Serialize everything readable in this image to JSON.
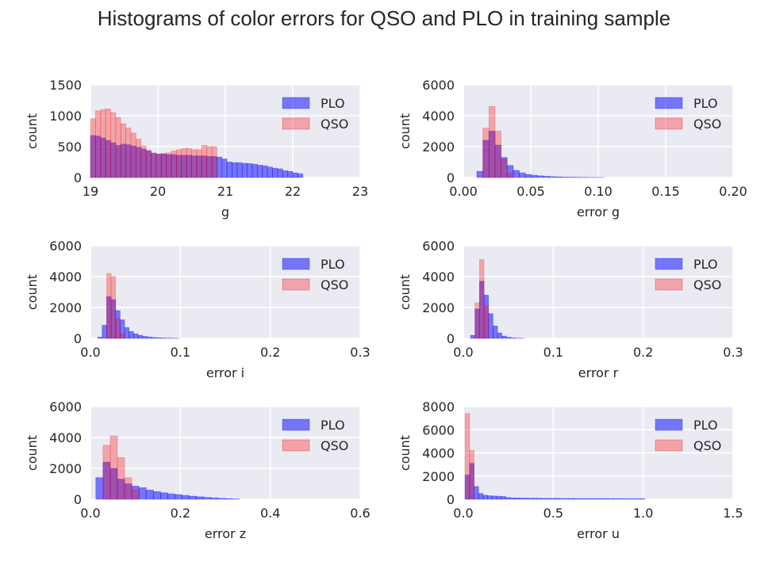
{
  "figure": {
    "title": "Histograms of color errors for QSO and PLO in training sample"
  },
  "colors": {
    "background": "#eaeaf2",
    "grid": "#ffffff",
    "plo": "#0000ff",
    "qso": "#ff0000",
    "text": "#262626"
  },
  "chart_data": [
    {
      "type": "bar",
      "xlabel": "g",
      "ylabel": "count",
      "xlim": [
        19,
        23
      ],
      "ylim": [
        0,
        1500
      ],
      "xticks": [
        "19",
        "20",
        "21",
        "22",
        "23"
      ],
      "yticks": [
        "0",
        "500",
        "1000",
        "1500"
      ],
      "legend": [
        "PLO",
        "QSO"
      ],
      "legend_position": "top-right",
      "bin_start": 19.0,
      "bin_width": 0.075,
      "series": [
        {
          "name": "PLO",
          "values": [
            680,
            670,
            640,
            600,
            560,
            520,
            540,
            530,
            510,
            490,
            460,
            430,
            390,
            380,
            380,
            370,
            370,
            360,
            360,
            360,
            350,
            350,
            350,
            340,
            340,
            330,
            300,
            250,
            240,
            240,
            230,
            225,
            215,
            200,
            190,
            170,
            150,
            140,
            110,
            100,
            75,
            60,
            0,
            0,
            0,
            0,
            0,
            0,
            0,
            0,
            0,
            0,
            0,
            0
          ]
        },
        {
          "name": "QSO",
          "values": [
            950,
            1080,
            1100,
            1110,
            1050,
            970,
            870,
            800,
            720,
            620,
            510,
            440,
            400,
            380,
            390,
            400,
            430,
            450,
            470,
            470,
            450,
            450,
            520,
            500,
            500,
            0,
            0,
            0,
            0,
            0,
            0,
            0,
            0,
            0,
            0,
            0,
            0,
            0,
            0,
            0,
            0,
            0,
            0,
            0,
            0,
            0,
            0,
            0,
            0,
            0,
            0,
            0,
            0,
            0
          ]
        }
      ]
    },
    {
      "type": "bar",
      "xlabel": "error g",
      "ylabel": "count",
      "xlim": [
        0,
        0.2
      ],
      "ylim": [
        0,
        6000
      ],
      "xticks": [
        "0.00",
        "0.05",
        "0.10",
        "0.15",
        "0.20"
      ],
      "yticks": [
        "0",
        "2000",
        "4000",
        "6000"
      ],
      "legend": [
        "PLO",
        "QSO"
      ],
      "legend_position": "top-right",
      "bin_start": 0.01,
      "bin_width": 0.0045,
      "series": [
        {
          "name": "PLO",
          "values": [
            400,
            2400,
            3000,
            2100,
            1300,
            780,
            460,
            300,
            200,
            150,
            110,
            80,
            60,
            40,
            30,
            25,
            20,
            15,
            10,
            8,
            5
          ]
        },
        {
          "name": "QSO",
          "values": [
            0,
            3200,
            4600,
            3000,
            1200,
            300,
            0,
            0,
            0,
            0,
            0,
            0,
            0,
            0,
            0,
            0,
            0,
            0,
            0,
            0,
            0
          ]
        }
      ]
    },
    {
      "type": "bar",
      "xlabel": "error i",
      "ylabel": "count",
      "xlim": [
        0,
        0.3
      ],
      "ylim": [
        0,
        6000
      ],
      "xticks": [
        "0.0",
        "0.1",
        "0.2",
        "0.3"
      ],
      "yticks": [
        "0",
        "2000",
        "4000",
        "6000"
      ],
      "legend": [
        "PLO",
        "QSO"
      ],
      "legend_position": "top-right",
      "bin_start": 0.008,
      "bin_width": 0.005,
      "series": [
        {
          "name": "PLO",
          "values": [
            80,
            850,
            2700,
            2500,
            1800,
            1200,
            700,
            450,
            300,
            200,
            130,
            90,
            60,
            40,
            30,
            20,
            15,
            10
          ]
        },
        {
          "name": "QSO",
          "values": [
            0,
            0,
            4200,
            4000,
            1300,
            300,
            0,
            0,
            0,
            0,
            0,
            0,
            0,
            0,
            0,
            0,
            0,
            0
          ]
        }
      ]
    },
    {
      "type": "bar",
      "xlabel": "error r",
      "ylabel": "count",
      "xlim": [
        0,
        0.3
      ],
      "ylim": [
        0,
        6000
      ],
      "xticks": [
        "0.0",
        "0.1",
        "0.2",
        "0.3"
      ],
      "yticks": [
        "0",
        "2000",
        "4000",
        "6000"
      ],
      "legend": [
        "PLO",
        "QSO"
      ],
      "legend_position": "top-right",
      "bin_start": 0.008,
      "bin_width": 0.005,
      "series": [
        {
          "name": "PLO",
          "values": [
            200,
            1900,
            3700,
            2800,
            1600,
            800,
            350,
            150,
            70,
            30,
            15,
            8
          ]
        },
        {
          "name": "QSO",
          "values": [
            0,
            2300,
            5100,
            2100,
            0,
            0,
            0,
            0,
            0,
            0,
            0,
            0
          ]
        }
      ]
    },
    {
      "type": "bar",
      "xlabel": "error z",
      "ylabel": "count",
      "xlim": [
        0,
        0.6
      ],
      "ylim": [
        0,
        6000
      ],
      "xticks": [
        "0.0",
        "0.2",
        "0.4",
        "0.6"
      ],
      "yticks": [
        "0",
        "2000",
        "4000",
        "6000"
      ],
      "legend": [
        "PLO",
        "QSO"
      ],
      "legend_position": "top-right",
      "bin_start": 0.012,
      "bin_width": 0.016,
      "series": [
        {
          "name": "PLO",
          "values": [
            1400,
            2400,
            2000,
            1300,
            1000,
            850,
            750,
            600,
            500,
            420,
            350,
            300,
            250,
            200,
            160,
            120,
            90,
            60,
            40,
            20
          ]
        },
        {
          "name": "QSO",
          "values": [
            0,
            3500,
            4100,
            2700,
            1400,
            600,
            0,
            0,
            0,
            0,
            0,
            0,
            0,
            0,
            0,
            0,
            0,
            0,
            0,
            0
          ]
        }
      ]
    },
    {
      "type": "bar",
      "xlabel": "error u",
      "ylabel": "count",
      "xlim": [
        0,
        1.5
      ],
      "ylim": [
        0,
        8000
      ],
      "xticks": [
        "0.0",
        "0.5",
        "1.0",
        "1.5"
      ],
      "yticks": [
        "0",
        "2000",
        "4000",
        "6000",
        "8000"
      ],
      "legend": [
        "PLO",
        "QSO"
      ],
      "legend_position": "top-right",
      "bin_start": 0.01,
      "bin_width": 0.025,
      "series": [
        {
          "name": "PLO",
          "values": [
            2100,
            3100,
            1100,
            500,
            350,
            300,
            280,
            260,
            240,
            150,
            120,
            110,
            100,
            100,
            90,
            90,
            90,
            80,
            80,
            80,
            80,
            70,
            70,
            70,
            70,
            60,
            60,
            60,
            60,
            60,
            60,
            60,
            55,
            55,
            55,
            50,
            50,
            50,
            50,
            50
          ]
        },
        {
          "name": "QSO",
          "values": [
            7400,
            4200,
            0,
            0,
            0,
            0,
            0,
            0,
            0,
            0,
            0,
            0,
            0,
            0,
            0,
            0,
            0,
            0,
            0,
            0,
            0,
            0,
            0,
            0,
            0,
            0,
            0,
            0,
            0,
            0,
            0,
            0,
            0,
            0,
            0,
            0,
            0,
            0,
            0,
            0
          ]
        }
      ]
    }
  ]
}
